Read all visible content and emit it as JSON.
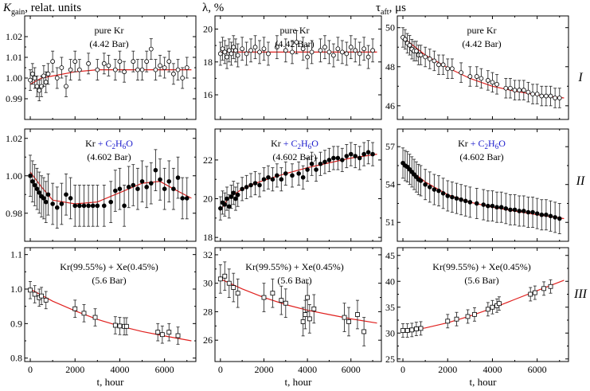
{
  "headers": {
    "col1": {
      "main": "K",
      "sub": "gain",
      "rest": ", relat. units"
    },
    "col2": {
      "main": "λ, %"
    },
    "col3": {
      "main": "τ",
      "sub": "aft",
      "rest": ", μs"
    }
  },
  "row_labels": [
    "I",
    "II",
    "III"
  ],
  "colors": {
    "fit": "#e0201e",
    "points": "#000000",
    "blue_text": "#1a1acc"
  },
  "chart_data": [
    {
      "type": "scatter",
      "col": 0,
      "row": 0,
      "annotation": [
        "pure Kr",
        "(4.42 Bar)"
      ],
      "ylim": [
        0.98,
        1.03
      ],
      "yticks": [
        0.99,
        1.0,
        1.01,
        1.02
      ],
      "xlim": [
        -250,
        7400
      ],
      "xticks": [],
      "marker": "circle-open",
      "errorbars": true,
      "series": [
        {
          "x": [
            0,
            100,
            200,
            300,
            400,
            500,
            600,
            700,
            800,
            1000,
            1200,
            1400,
            1600,
            1800,
            2000,
            2200,
            2600,
            3000,
            3300,
            3500,
            3800,
            4000,
            4200,
            4600,
            4800,
            5000,
            5200,
            5400,
            5600,
            5800,
            6000,
            6200,
            6400,
            6600,
            6800,
            7000
          ],
          "y": [
            0.999,
            1.002,
            1.0,
            0.996,
            0.994,
            0.996,
            1.001,
            0.998,
            1.002,
            1.008,
            1.0,
            1.005,
            0.996,
            1.004,
            1.008,
            1.004,
            1.007,
            1.004,
            1.007,
            1.006,
            1.004,
            1.008,
            1.003,
            1.008,
            1.004,
            1.004,
            1.008,
            1.014,
            1.004,
            1.006,
            1.005,
            1.008,
            1.002,
            1.004,
            1.0,
            1.005
          ],
          "err": 0.005
        }
      ],
      "fit": {
        "x": [
          0,
          500,
          1000,
          2000,
          3000,
          4000,
          5000,
          6000,
          7200
        ],
        "y": [
          0.997,
          1.0,
          1.001,
          1.003,
          1.004,
          1.004,
          1.004,
          1.004,
          1.004
        ]
      }
    },
    {
      "type": "scatter",
      "col": 1,
      "row": 0,
      "annotation": [
        "pure Kr",
        "(4.42 Bar)"
      ],
      "ylim": [
        14.5,
        20.8
      ],
      "yticks": [
        16,
        18,
        20
      ],
      "xlim": [
        -250,
        7400
      ],
      "xticks": [],
      "marker": "circle-open",
      "errorbars": true,
      "series": [
        {
          "x": [
            0,
            100,
            200,
            300,
            400,
            500,
            600,
            700,
            800,
            1000,
            1200,
            1400,
            1600,
            1800,
            2000,
            2200,
            2600,
            3000,
            3300,
            3500,
            3800,
            4000,
            4200,
            4600,
            4800,
            5000,
            5200,
            5400,
            5600,
            5800,
            6000,
            6200,
            6400,
            6600,
            6800,
            7000
          ],
          "y": [
            18.5,
            18.8,
            18.6,
            18.3,
            18.7,
            18.5,
            18.9,
            18.7,
            18.4,
            18.8,
            18.5,
            18.7,
            18.9,
            18.6,
            18.8,
            18.5,
            18.9,
            18.7,
            18.6,
            19.2,
            18.8,
            18.3,
            18.6,
            18.7,
            18.9,
            18.6,
            18.4,
            18.8,
            18.6,
            18.5,
            18.9,
            18.7,
            18.5,
            18.8,
            18.3,
            18.7
          ],
          "err": 0.7
        }
      ],
      "fit": {
        "x": [
          0,
          7200
        ],
        "y": [
          18.6,
          18.6
        ]
      }
    },
    {
      "type": "scatter",
      "col": 2,
      "row": 0,
      "annotation": [
        "pure Kr",
        "(4.42 Bar)"
      ],
      "ylim": [
        45.3,
        50.6
      ],
      "yticks": [
        46,
        48,
        50
      ],
      "xlim": [
        -250,
        7400
      ],
      "xticks": [],
      "marker": "circle-open",
      "errorbars": true,
      "series": [
        {
          "x": [
            0,
            100,
            200,
            300,
            400,
            500,
            600,
            700,
            800,
            1000,
            1200,
            1400,
            1600,
            1800,
            2000,
            2200,
            2600,
            3000,
            3300,
            3500,
            3800,
            4000,
            4200,
            4600,
            4800,
            5000,
            5200,
            5400,
            5600,
            5800,
            6000,
            6200,
            6400,
            6600,
            6800,
            7000
          ],
          "y": [
            49.5,
            49.4,
            49.2,
            49.1,
            48.9,
            48.8,
            48.8,
            48.6,
            48.6,
            48.5,
            48.4,
            48.3,
            48.1,
            48.1,
            47.9,
            47.9,
            47.7,
            47.5,
            47.5,
            47.4,
            47.3,
            47.2,
            47.1,
            46.9,
            46.9,
            46.8,
            46.8,
            46.8,
            46.7,
            46.6,
            46.6,
            46.5,
            46.5,
            46.5,
            46.4,
            46.4
          ],
          "err": 0.5
        }
      ],
      "fit": {
        "x": [
          0,
          1000,
          2000,
          3000,
          4000,
          5000,
          6000,
          7200
        ],
        "y": [
          49.5,
          48.6,
          47.95,
          47.4,
          47.0,
          46.75,
          46.55,
          46.4
        ]
      }
    },
    {
      "type": "scatter",
      "col": 0,
      "row": 1,
      "annotation": [
        "Kr + C2H6O",
        "(4.602 Bar)"
      ],
      "ylim": [
        0.965,
        1.025
      ],
      "yticks": [
        0.98,
        1.0,
        1.02
      ],
      "xlim": [
        -250,
        7400
      ],
      "xticks": [],
      "marker": "circle-filled",
      "errorbars": true,
      "series": [
        {
          "x": [
            0,
            100,
            200,
            300,
            400,
            500,
            600,
            700,
            800,
            1000,
            1200,
            1400,
            1600,
            1800,
            2000,
            2200,
            2400,
            2600,
            2800,
            3000,
            3300,
            3600,
            3800,
            4000,
            4200,
            4400,
            4600,
            4800,
            5000,
            5200,
            5400,
            5600,
            5800,
            6000,
            6200,
            6400,
            6600,
            6800,
            7000
          ],
          "y": [
            1.0,
            0.997,
            0.995,
            0.993,
            0.991,
            0.989,
            0.988,
            0.986,
            0.99,
            0.985,
            0.983,
            0.985,
            0.99,
            0.988,
            0.984,
            0.984,
            0.984,
            0.984,
            0.984,
            0.984,
            0.984,
            0.986,
            0.992,
            0.993,
            0.984,
            0.994,
            0.995,
            0.993,
            0.997,
            0.994,
            0.996,
            1.003,
            0.998,
            0.993,
            0.997,
            0.993,
            0.999,
            0.988,
            0.988
          ],
          "err": 0.011
        }
      ],
      "fit": {
        "x": [
          0,
          500,
          1000,
          2000,
          3000,
          4000,
          5000,
          5800,
          6400,
          7200
        ],
        "y": [
          1.002,
          0.994,
          0.987,
          0.985,
          0.986,
          0.991,
          0.996,
          0.997,
          0.993,
          0.988
        ]
      }
    },
    {
      "type": "scatter",
      "col": 1,
      "row": 1,
      "annotation": [
        "Kr + C2H6O",
        "(4.602 Bar)"
      ],
      "ylim": [
        17.8,
        23.6
      ],
      "yticks": [
        18,
        20,
        22
      ],
      "xlim": [
        -250,
        7400
      ],
      "xticks": [],
      "marker": "circle-filled",
      "errorbars": true,
      "series": [
        {
          "x": [
            0,
            100,
            200,
            300,
            400,
            500,
            600,
            700,
            800,
            1000,
            1200,
            1400,
            1600,
            1800,
            2000,
            2200,
            2400,
            2600,
            2800,
            3000,
            3300,
            3600,
            3800,
            4000,
            4200,
            4400,
            4600,
            4800,
            5000,
            5200,
            5400,
            5600,
            5800,
            6000,
            6200,
            6400,
            6600,
            6800,
            7000
          ],
          "y": [
            19.5,
            19.8,
            19.7,
            20.0,
            19.6,
            20.1,
            20.3,
            20.0,
            20.2,
            20.5,
            20.6,
            20.7,
            20.8,
            20.7,
            21.0,
            21.1,
            21.0,
            21.2,
            21.0,
            21.3,
            21.2,
            21.3,
            21.1,
            21.5,
            21.8,
            21.5,
            21.8,
            21.9,
            22.0,
            22.1,
            22.1,
            22.0,
            22.2,
            22.3,
            22.2,
            22.1,
            22.3,
            22.4,
            22.3
          ],
          "err": 0.6
        }
      ],
      "fit": {
        "x": [
          0,
          300,
          600,
          1000,
          1500,
          2000,
          3000,
          4000,
          5000,
          6000,
          7200
        ],
        "y": [
          19.4,
          19.9,
          20.2,
          20.5,
          20.75,
          20.95,
          21.3,
          21.6,
          21.85,
          22.1,
          22.3
        ]
      }
    },
    {
      "type": "scatter",
      "col": 2,
      "row": 1,
      "annotation": [
        "Kr + C2H6O",
        "(4.602 Bar)"
      ],
      "ylim": [
        49.5,
        58.4
      ],
      "yticks": [
        51,
        54,
        57
      ],
      "xlim": [
        -250,
        7400
      ],
      "xticks": [],
      "marker": "circle-filled",
      "errorbars": true,
      "series": [
        {
          "x": [
            0,
            100,
            200,
            300,
            400,
            500,
            600,
            700,
            800,
            1000,
            1200,
            1400,
            1600,
            1800,
            2000,
            2200,
            2400,
            2600,
            2800,
            3000,
            3300,
            3600,
            3800,
            4000,
            4200,
            4400,
            4600,
            4800,
            5000,
            5200,
            5400,
            5600,
            5800,
            6000,
            6200,
            6400,
            6600,
            6800,
            7000
          ],
          "y": [
            55.7,
            55.5,
            55.4,
            55.2,
            55.0,
            54.8,
            54.6,
            54.4,
            54.3,
            54.0,
            53.8,
            53.6,
            53.5,
            53.3,
            53.1,
            53.0,
            52.9,
            52.8,
            52.7,
            52.6,
            52.5,
            52.4,
            52.3,
            52.3,
            52.2,
            52.2,
            52.1,
            52.0,
            52.0,
            51.9,
            51.9,
            51.8,
            51.8,
            51.7,
            51.6,
            51.6,
            51.5,
            51.4,
            51.3
          ],
          "err": 1.2
        }
      ],
      "fit": {
        "x": [
          0,
          500,
          1000,
          2000,
          3000,
          4000,
          5000,
          6000,
          7200
        ],
        "y": [
          55.8,
          54.9,
          54.2,
          53.2,
          52.6,
          52.2,
          51.9,
          51.6,
          51.3
        ]
      }
    },
    {
      "type": "scatter",
      "col": 0,
      "row": 2,
      "annotation": [
        "Kr(99.55%) + Xe(0.45%)",
        "(5.6 Bar)"
      ],
      "ylim": [
        0.79,
        1.12
      ],
      "yticks": [
        0.8,
        0.9,
        1.0,
        1.1
      ],
      "xlim": [
        -250,
        7400
      ],
      "xticks": [
        0,
        2000,
        4000,
        6000
      ],
      "xlabel": "t, hour",
      "marker": "square-open",
      "errorbars": true,
      "series": [
        {
          "x": [
            0,
            200,
            400,
            500,
            700,
            2000,
            2400,
            2900,
            3800,
            4000,
            4200,
            4300,
            5700,
            5900,
            6200,
            6600
          ],
          "y": [
            0.997,
            0.985,
            0.975,
            0.98,
            0.968,
            0.943,
            0.93,
            0.918,
            0.895,
            0.893,
            0.892,
            0.892,
            0.875,
            0.868,
            0.875,
            0.865
          ],
          "err": 0.025
        }
      ],
      "fit": {
        "x": [
          0,
          1000,
          2000,
          3000,
          4000,
          5000,
          6000,
          7200
        ],
        "y": [
          1.0,
          0.965,
          0.937,
          0.912,
          0.893,
          0.877,
          0.864,
          0.85
        ]
      }
    },
    {
      "type": "scatter",
      "col": 1,
      "row": 2,
      "annotation": [
        "Kr(99.55%) + Xe(0.45%)",
        "(5.6 Bar)"
      ],
      "ylim": [
        24.5,
        32.5
      ],
      "yticks": [
        26,
        28,
        30,
        32
      ],
      "xlim": [
        -250,
        7400
      ],
      "xticks": [
        0,
        2000,
        4000,
        6000
      ],
      "xlabel": "t, hour",
      "marker": "square-open",
      "errorbars": true,
      "series": [
        {
          "x": [
            0,
            200,
            400,
            600,
            800,
            2000,
            2400,
            2800,
            3000,
            3800,
            3900,
            4000,
            4100,
            4300,
            5700,
            5900,
            6300,
            6600
          ],
          "y": [
            30.3,
            30.5,
            30.0,
            29.7,
            29.3,
            29.0,
            29.3,
            28.8,
            28.6,
            27.3,
            27.8,
            29.0,
            27.5,
            28.2,
            27.6,
            27.3,
            27.8,
            26.6
          ],
          "err": 1.0
        }
      ],
      "fit": {
        "x": [
          0,
          1000,
          2000,
          3000,
          4000,
          5000,
          6000,
          7200
        ],
        "y": [
          30.3,
          29.6,
          29.0,
          28.5,
          28.1,
          27.8,
          27.5,
          27.2
        ]
      }
    },
    {
      "type": "scatter",
      "col": 2,
      "row": 2,
      "annotation": [
        "Kr(99.55%) + Xe(0.45%)",
        "(5.6 Bar)"
      ],
      "ylim": [
        24.5,
        46.5
      ],
      "yticks": [
        25,
        30,
        35,
        40,
        45
      ],
      "xlim": [
        -250,
        7400
      ],
      "xticks": [
        0,
        2000,
        4000,
        6000
      ],
      "xlabel": "t, hour",
      "marker": "square-open",
      "errorbars": true,
      "series": [
        {
          "x": [
            0,
            200,
            400,
            600,
            800,
            2000,
            2400,
            2900,
            3200,
            3800,
            4000,
            4200,
            4300,
            5700,
            5900,
            6300,
            6600
          ],
          "y": [
            30.5,
            30.5,
            30.6,
            30.8,
            30.9,
            32.3,
            32.7,
            33.2,
            33.6,
            34.6,
            35.0,
            35.3,
            35.7,
            37.5,
            37.8,
            38.6,
            39.0
          ],
          "err": 1.3
        }
      ],
      "fit": {
        "x": [
          0,
          1000,
          2000,
          3000,
          4000,
          5000,
          6000,
          7200
        ],
        "y": [
          30.4,
          31.0,
          32.0,
          33.3,
          34.8,
          36.5,
          38.2,
          40.2
        ]
      }
    }
  ]
}
